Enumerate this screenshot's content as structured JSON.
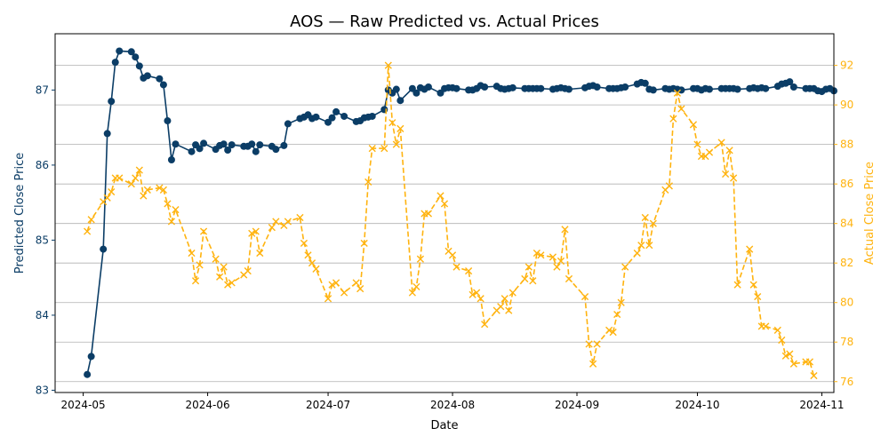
{
  "chart_data": {
    "type": "line",
    "title": "AOS — Raw Predicted vs. Actual Prices",
    "xlabel": "Date",
    "ylabel_left": "Predicted Close Price",
    "ylabel_right": "Actual Close Price",
    "x_ticks": [
      "2024-05",
      "2024-06",
      "2024-07",
      "2024-08",
      "2024-09",
      "2024-10",
      "2024-11"
    ],
    "y_left_ticks": [
      "83",
      "84",
      "85",
      "86",
      "87"
    ],
    "y_right_ticks": [
      "76",
      "78",
      "80",
      "82",
      "84",
      "86",
      "88",
      "90",
      "92"
    ],
    "x_range": [
      "2024-04-24",
      "2024-11-04"
    ],
    "y_left_range": [
      82.97,
      87.75
    ],
    "y_right_range": [
      75.45,
      93.6
    ],
    "grid": "horizontal, right axis",
    "colors": {
      "predicted": "#0b3d66",
      "actual": "#ffb30f"
    },
    "series": [
      {
        "axis": "left",
        "marker": "circle",
        "style": "solid",
        "points": [
          [
            "2024-05-02",
            83.21
          ],
          [
            "2024-05-03",
            83.45
          ],
          [
            "2024-05-06",
            84.88
          ],
          [
            "2024-05-07",
            86.42
          ],
          [
            "2024-05-08",
            86.85
          ],
          [
            "2024-05-09",
            87.37
          ],
          [
            "2024-05-10",
            87.52
          ],
          [
            "2024-05-13",
            87.51
          ],
          [
            "2024-05-14",
            87.44
          ],
          [
            "2024-05-15",
            87.32
          ],
          [
            "2024-05-16",
            87.16
          ],
          [
            "2024-05-17",
            87.19
          ],
          [
            "2024-05-20",
            87.15
          ],
          [
            "2024-05-21",
            87.07
          ],
          [
            "2024-05-22",
            86.59
          ],
          [
            "2024-05-23",
            86.07
          ],
          [
            "2024-05-24",
            86.28
          ],
          [
            "2024-05-28",
            86.18
          ],
          [
            "2024-05-29",
            86.27
          ],
          [
            "2024-05-30",
            86.22
          ],
          [
            "2024-05-31",
            86.29
          ],
          [
            "2024-06-03",
            86.21
          ],
          [
            "2024-06-04",
            86.26
          ],
          [
            "2024-06-05",
            86.28
          ],
          [
            "2024-06-06",
            86.2
          ],
          [
            "2024-06-07",
            86.27
          ],
          [
            "2024-06-10",
            86.25
          ],
          [
            "2024-06-11",
            86.25
          ],
          [
            "2024-06-12",
            86.28
          ],
          [
            "2024-06-13",
            86.18
          ],
          [
            "2024-06-14",
            86.27
          ],
          [
            "2024-06-17",
            86.25
          ],
          [
            "2024-06-18",
            86.21
          ],
          [
            "2024-06-20",
            86.26
          ],
          [
            "2024-06-21",
            86.55
          ],
          [
            "2024-06-24",
            86.62
          ],
          [
            "2024-06-25",
            86.64
          ],
          [
            "2024-06-26",
            86.67
          ],
          [
            "2024-06-27",
            86.62
          ],
          [
            "2024-06-28",
            86.64
          ],
          [
            "2024-07-01",
            86.57
          ],
          [
            "2024-07-02",
            86.63
          ],
          [
            "2024-07-03",
            86.71
          ],
          [
            "2024-07-05",
            86.65
          ],
          [
            "2024-07-08",
            86.58
          ],
          [
            "2024-07-09",
            86.59
          ],
          [
            "2024-07-10",
            86.63
          ],
          [
            "2024-07-11",
            86.64
          ],
          [
            "2024-07-12",
            86.65
          ],
          [
            "2024-07-15",
            86.74
          ],
          [
            "2024-07-16",
            87.0
          ],
          [
            "2024-07-17",
            86.96
          ],
          [
            "2024-07-18",
            87.01
          ],
          [
            "2024-07-19",
            86.86
          ],
          [
            "2024-07-22",
            87.02
          ],
          [
            "2024-07-23",
            86.96
          ],
          [
            "2024-07-24",
            87.03
          ],
          [
            "2024-07-25",
            87.01
          ],
          [
            "2024-07-26",
            87.04
          ],
          [
            "2024-07-29",
            86.96
          ],
          [
            "2024-07-30",
            87.02
          ],
          [
            "2024-07-31",
            87.03
          ],
          [
            "2024-08-01",
            87.03
          ],
          [
            "2024-08-02",
            87.02
          ],
          [
            "2024-08-05",
            87.0
          ],
          [
            "2024-08-06",
            87.0
          ],
          [
            "2024-08-07",
            87.02
          ],
          [
            "2024-08-08",
            87.06
          ],
          [
            "2024-08-09",
            87.04
          ],
          [
            "2024-08-12",
            87.05
          ],
          [
            "2024-08-13",
            87.02
          ],
          [
            "2024-08-14",
            87.01
          ],
          [
            "2024-08-15",
            87.02
          ],
          [
            "2024-08-16",
            87.03
          ],
          [
            "2024-08-19",
            87.02
          ],
          [
            "2024-08-20",
            87.02
          ],
          [
            "2024-08-21",
            87.02
          ],
          [
            "2024-08-22",
            87.02
          ],
          [
            "2024-08-23",
            87.02
          ],
          [
            "2024-08-26",
            87.01
          ],
          [
            "2024-08-27",
            87.02
          ],
          [
            "2024-08-28",
            87.03
          ],
          [
            "2024-08-29",
            87.02
          ],
          [
            "2024-08-30",
            87.01
          ],
          [
            "2024-09-03",
            87.03
          ],
          [
            "2024-09-04",
            87.05
          ],
          [
            "2024-09-05",
            87.06
          ],
          [
            "2024-09-06",
            87.04
          ],
          [
            "2024-09-09",
            87.02
          ],
          [
            "2024-09-10",
            87.02
          ],
          [
            "2024-09-11",
            87.02
          ],
          [
            "2024-09-12",
            87.03
          ],
          [
            "2024-09-13",
            87.04
          ],
          [
            "2024-09-16",
            87.08
          ],
          [
            "2024-09-17",
            87.1
          ],
          [
            "2024-09-18",
            87.09
          ],
          [
            "2024-09-19",
            87.01
          ],
          [
            "2024-09-20",
            87.0
          ],
          [
            "2024-09-23",
            87.02
          ],
          [
            "2024-09-24",
            87.01
          ],
          [
            "2024-09-25",
            87.02
          ],
          [
            "2024-09-26",
            87.01
          ],
          [
            "2024-09-27",
            87.0
          ],
          [
            "2024-09-30",
            87.02
          ],
          [
            "2024-10-01",
            87.02
          ],
          [
            "2024-10-02",
            87.0
          ],
          [
            "2024-10-03",
            87.02
          ],
          [
            "2024-10-04",
            87.01
          ],
          [
            "2024-10-07",
            87.02
          ],
          [
            "2024-10-08",
            87.02
          ],
          [
            "2024-10-09",
            87.02
          ],
          [
            "2024-10-10",
            87.02
          ],
          [
            "2024-10-11",
            87.01
          ],
          [
            "2024-10-14",
            87.02
          ],
          [
            "2024-10-15",
            87.03
          ],
          [
            "2024-10-16",
            87.02
          ],
          [
            "2024-10-17",
            87.03
          ],
          [
            "2024-10-18",
            87.02
          ],
          [
            "2024-10-21",
            87.05
          ],
          [
            "2024-10-22",
            87.08
          ],
          [
            "2024-10-23",
            87.09
          ],
          [
            "2024-10-24",
            87.11
          ],
          [
            "2024-10-25",
            87.04
          ],
          [
            "2024-10-28",
            87.02
          ],
          [
            "2024-10-29",
            87.02
          ],
          [
            "2024-10-30",
            87.02
          ],
          [
            "2024-10-31",
            86.99
          ],
          [
            "2024-11-01",
            86.98
          ],
          [
            "2024-11-02",
            87.01
          ],
          [
            "2024-11-03",
            87.02
          ],
          [
            "2024-11-04",
            86.99
          ]
        ]
      },
      {
        "axis": "right",
        "marker": "x",
        "style": "dashed",
        "points": [
          [
            "2024-05-02",
            83.6
          ],
          [
            "2024-05-03",
            84.2
          ],
          [
            "2024-05-06",
            85.1
          ],
          [
            "2024-05-07",
            85.3
          ],
          [
            "2024-05-08",
            85.6
          ],
          [
            "2024-05-09",
            86.3
          ],
          [
            "2024-05-10",
            86.3
          ],
          [
            "2024-05-13",
            86.0
          ],
          [
            "2024-05-14",
            86.3
          ],
          [
            "2024-05-15",
            86.7
          ],
          [
            "2024-05-16",
            85.4
          ],
          [
            "2024-05-17",
            85.7
          ],
          [
            "2024-05-20",
            85.8
          ],
          [
            "2024-05-21",
            85.7
          ],
          [
            "2024-05-22",
            85.0
          ],
          [
            "2024-05-23",
            84.1
          ],
          [
            "2024-05-24",
            84.7
          ],
          [
            "2024-05-28",
            82.5
          ],
          [
            "2024-05-29",
            81.1
          ],
          [
            "2024-05-30",
            81.9
          ],
          [
            "2024-05-31",
            83.6
          ],
          [
            "2024-06-03",
            82.2
          ],
          [
            "2024-06-04",
            81.3
          ],
          [
            "2024-06-05",
            81.8
          ],
          [
            "2024-06-06",
            80.9
          ],
          [
            "2024-06-07",
            81.0
          ],
          [
            "2024-06-10",
            81.4
          ],
          [
            "2024-06-11",
            81.6
          ],
          [
            "2024-06-12",
            83.5
          ],
          [
            "2024-06-13",
            83.6
          ],
          [
            "2024-06-14",
            82.5
          ],
          [
            "2024-06-17",
            83.8
          ],
          [
            "2024-06-18",
            84.1
          ],
          [
            "2024-06-20",
            83.9
          ],
          [
            "2024-06-21",
            84.1
          ],
          [
            "2024-06-24",
            84.3
          ],
          [
            "2024-06-25",
            83.0
          ],
          [
            "2024-06-26",
            82.4
          ],
          [
            "2024-06-27",
            82.0
          ],
          [
            "2024-06-28",
            81.7
          ],
          [
            "2024-07-01",
            80.2
          ],
          [
            "2024-07-02",
            80.9
          ],
          [
            "2024-07-03",
            81.0
          ],
          [
            "2024-07-05",
            80.5
          ],
          [
            "2024-07-08",
            81.0
          ],
          [
            "2024-07-09",
            80.7
          ],
          [
            "2024-07-10",
            83.0
          ],
          [
            "2024-07-11",
            86.1
          ],
          [
            "2024-07-12",
            87.8
          ],
          [
            "2024-07-15",
            87.8
          ],
          [
            "2024-07-16",
            92.0
          ],
          [
            "2024-07-17",
            89.1
          ],
          [
            "2024-07-18",
            88.0
          ],
          [
            "2024-07-19",
            88.8
          ],
          [
            "2024-07-22",
            80.5
          ],
          [
            "2024-07-23",
            80.8
          ],
          [
            "2024-07-24",
            82.2
          ],
          [
            "2024-07-25",
            84.5
          ],
          [
            "2024-07-26",
            84.5
          ],
          [
            "2024-07-29",
            85.4
          ],
          [
            "2024-07-30",
            85.0
          ],
          [
            "2024-07-31",
            82.6
          ],
          [
            "2024-08-01",
            82.4
          ],
          [
            "2024-08-02",
            81.8
          ],
          [
            "2024-08-05",
            81.6
          ],
          [
            "2024-08-06",
            80.4
          ],
          [
            "2024-08-07",
            80.5
          ],
          [
            "2024-08-08",
            80.2
          ],
          [
            "2024-08-09",
            78.9
          ],
          [
            "2024-08-12",
            79.6
          ],
          [
            "2024-08-13",
            79.8
          ],
          [
            "2024-08-14",
            80.2
          ],
          [
            "2024-08-15",
            79.6
          ],
          [
            "2024-08-16",
            80.5
          ],
          [
            "2024-08-19",
            81.2
          ],
          [
            "2024-08-20",
            81.8
          ],
          [
            "2024-08-21",
            81.1
          ],
          [
            "2024-08-22",
            82.5
          ],
          [
            "2024-08-23",
            82.4
          ],
          [
            "2024-08-26",
            82.3
          ],
          [
            "2024-08-27",
            81.8
          ],
          [
            "2024-08-28",
            82.1
          ],
          [
            "2024-08-29",
            83.7
          ],
          [
            "2024-08-30",
            81.2
          ],
          [
            "2024-09-03",
            80.3
          ],
          [
            "2024-09-04",
            77.9
          ],
          [
            "2024-09-05",
            76.9
          ],
          [
            "2024-09-06",
            77.9
          ],
          [
            "2024-09-09",
            78.6
          ],
          [
            "2024-09-10",
            78.5
          ],
          [
            "2024-09-11",
            79.4
          ],
          [
            "2024-09-12",
            80.0
          ],
          [
            "2024-09-13",
            81.8
          ],
          [
            "2024-09-16",
            82.5
          ],
          [
            "2024-09-17",
            82.9
          ],
          [
            "2024-09-18",
            84.3
          ],
          [
            "2024-09-19",
            82.9
          ],
          [
            "2024-09-20",
            84.0
          ],
          [
            "2024-09-23",
            85.7
          ],
          [
            "2024-09-24",
            85.9
          ],
          [
            "2024-09-25",
            89.3
          ],
          [
            "2024-09-26",
            90.6
          ],
          [
            "2024-09-27",
            89.8
          ],
          [
            "2024-09-30",
            89.0
          ],
          [
            "2024-10-01",
            88.0
          ],
          [
            "2024-10-02",
            87.4
          ],
          [
            "2024-10-03",
            87.4
          ],
          [
            "2024-10-04",
            87.6
          ],
          [
            "2024-10-07",
            88.1
          ],
          [
            "2024-10-08",
            86.5
          ],
          [
            "2024-10-09",
            87.7
          ],
          [
            "2024-10-10",
            86.3
          ],
          [
            "2024-10-11",
            80.9
          ],
          [
            "2024-10-14",
            82.7
          ],
          [
            "2024-10-15",
            80.9
          ],
          [
            "2024-10-16",
            80.3
          ],
          [
            "2024-10-17",
            78.8
          ],
          [
            "2024-10-18",
            78.8
          ],
          [
            "2024-10-21",
            78.6
          ],
          [
            "2024-10-22",
            78.1
          ],
          [
            "2024-10-23",
            77.3
          ],
          [
            "2024-10-24",
            77.4
          ],
          [
            "2024-10-25",
            76.9
          ],
          [
            "2024-10-28",
            77.0
          ],
          [
            "2024-10-29",
            77.0
          ],
          [
            "2024-10-30",
            76.3
          ]
        ]
      }
    ]
  }
}
